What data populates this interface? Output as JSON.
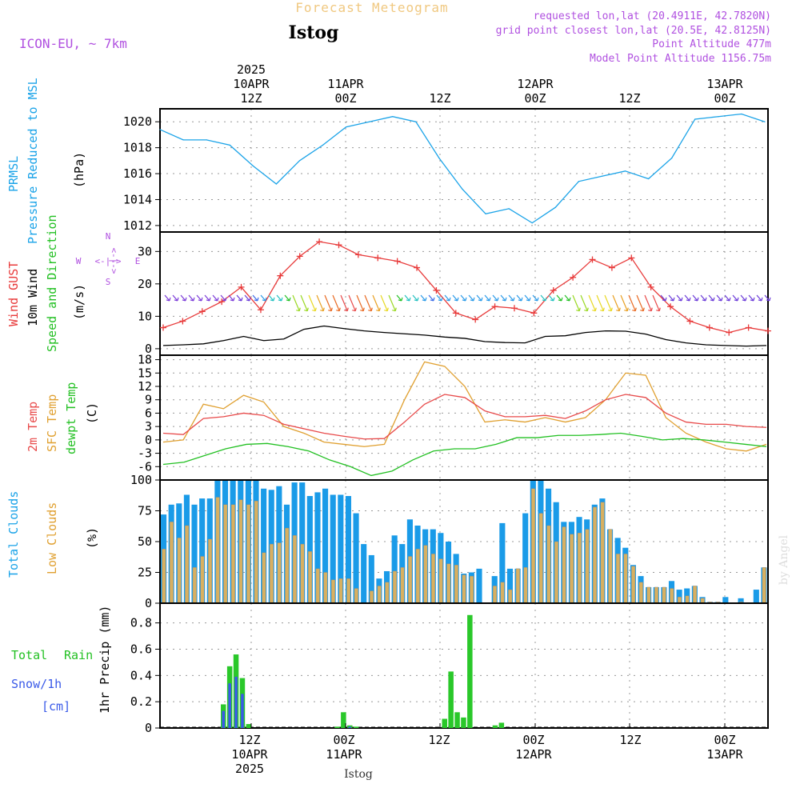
{
  "header": {
    "title": "Forecast Meteogram",
    "location": "Istog",
    "model": "ICON-EU, ~ 7km",
    "requested": "requested lon,lat (20.4911E, 42.7820N)",
    "gridpoint": "grid point closest lon,lat (20.5E, 42.8125N)",
    "point_alt": "Point Altitude 477m",
    "model_alt": "Model Point Altitude 1156.75m",
    "watermark": "by Angel",
    "footer": "Istog"
  },
  "time_axis": {
    "top": [
      {
        "year": "2025",
        "day": "10APR",
        "hour": "12Z"
      },
      {
        "day": "11APR",
        "hour": "00Z"
      },
      {
        "hour": "12Z"
      },
      {
        "day": "12APR",
        "hour": "00Z"
      },
      {
        "hour": "12Z"
      },
      {
        "day": "13APR",
        "hour": "00Z"
      }
    ],
    "bottom": [
      {
        "hour": "12Z",
        "day": "10APR",
        "year": "2025"
      },
      {
        "hour": "00Z",
        "day": "11APR"
      },
      {
        "hour": "12Z"
      },
      {
        "hour": "00Z",
        "day": "12APR"
      },
      {
        "hour": "12Z"
      },
      {
        "hour": "00Z",
        "day": "13APR"
      }
    ]
  },
  "labels": {
    "p1": {
      "a": "PRMSL",
      "b": "Pressure Reduced to MSL",
      "unit": "(hPa)"
    },
    "p2": {
      "a": "Wind GUST",
      "b": "10m Wind",
      "c": "Speed and Direction",
      "unit": "(m/s)",
      "compass": {
        "n": "N",
        "s": "S",
        "w": "W",
        "e": "E",
        "arrow_h": "<-|->",
        "arrow_v": "<-|->"
      }
    },
    "p3": {
      "a": "2m Temp",
      "b": "SFC Temp",
      "c": "dewpt Temp",
      "unit": "(C)"
    },
    "p4": {
      "a": "Total Clouds",
      "b": "Low Clouds",
      "unit": "(%)"
    },
    "p5": {
      "a": "Total",
      "b": "Rain",
      "c": "Snow/1h",
      "d": "[cm]",
      "unit": "1hr Precip (mm)"
    }
  },
  "colors": {
    "pressure": "#1aa3e8",
    "gust": "#e83a3a",
    "wind": "#000000",
    "t2m": "#e84a4a",
    "tsfc": "#e0a030",
    "dewpt": "#22c022",
    "total_clouds": "#1a9be8",
    "low_clouds": "#d8b060",
    "rain": "#2ac82a",
    "snow": "#3a5ae8",
    "title": "#f0c880",
    "info": "#b050e0"
  },
  "chart_data": [
    {
      "type": "line",
      "name": "PRMSL",
      "x_hours": [
        0,
        3,
        6,
        9,
        12,
        15,
        18,
        21,
        24,
        27,
        30,
        33,
        36,
        39,
        42,
        45,
        48,
        51,
        54,
        57,
        60,
        63,
        66,
        69,
        72,
        75,
        78
      ],
      "x_offset_note": "",
      "y": [
        1019.4,
        1018.6,
        1018.6,
        1018.2,
        1016.6,
        1015.2,
        1017.0,
        1018.2,
        1019.6,
        1020.0,
        1020.4,
        1020.0,
        1017.2,
        1014.8,
        1012.9,
        1013.3,
        1012.2,
        1013.4,
        1015.4,
        1015.8,
        1016.2,
        1015.6,
        1017.2,
        1020.2,
        1020.4,
        1020.6,
        1020.0
      ],
      "ylim": [
        1011.5,
        1021.0
      ],
      "yticks": [
        1012,
        1014,
        1016,
        1018,
        1020
      ]
    },
    {
      "type": "line",
      "name": "Wind GUST / 10m Wind",
      "gust": [
        6.5,
        8.5,
        11.5,
        14.5,
        19.0,
        12.0,
        22.5,
        28.5,
        33.0,
        32.0,
        29.0,
        28.0,
        27.0,
        25.0,
        18.0,
        11.0,
        9.0,
        13.0,
        12.5,
        11.0,
        18.0,
        22.0,
        27.5,
        25.0,
        28.0,
        19.0,
        13.0,
        8.5,
        6.5,
        5.0,
        6.5,
        5.5
      ],
      "wind": [
        1.0,
        1.2,
        1.5,
        2.5,
        3.8,
        2.5,
        3.0,
        6.0,
        7.0,
        6.2,
        5.5,
        5.0,
        4.6,
        4.2,
        3.6,
        3.2,
        2.2,
        1.9,
        1.8,
        3.8,
        4.0,
        5.0,
        5.5,
        5.4,
        4.5,
        2.8,
        1.8,
        1.2,
        1.0,
        0.8,
        1.0
      ],
      "ylim": [
        -2,
        36
      ],
      "yticks": [
        0,
        10,
        20,
        30
      ]
    },
    {
      "type": "line",
      "name": "Temperatures",
      "t2m": [
        1.5,
        1.2,
        4.8,
        5.2,
        6.0,
        5.5,
        3.5,
        2.5,
        1.5,
        0.8,
        0.2,
        0.3,
        4.0,
        8.0,
        10.2,
        9.5,
        6.5,
        5.2,
        5.2,
        5.5,
        4.8,
        6.5,
        9.0,
        10.2,
        9.5,
        6.0,
        4.0,
        3.5,
        3.5,
        3.0,
        2.8
      ],
      "tsfc": [
        -0.5,
        0.0,
        8.0,
        7.0,
        10.0,
        8.5,
        3.0,
        1.5,
        -0.5,
        -1.0,
        -1.5,
        -1.0,
        9.0,
        17.5,
        16.5,
        12.0,
        4.0,
        4.5,
        4.0,
        5.0,
        4.0,
        5.0,
        9.0,
        15.0,
        14.5,
        5.0,
        1.5,
        -0.5,
        -2.0,
        -2.5,
        -1.0
      ],
      "dewpt": [
        -5.5,
        -5.0,
        -3.5,
        -2.0,
        -1.0,
        -0.8,
        -1.5,
        -2.5,
        -4.5,
        -6.0,
        -8.0,
        -7.0,
        -4.5,
        -2.5,
        -2.0,
        -2.0,
        -1.0,
        0.5,
        0.5,
        1.0,
        1.0,
        1.2,
        1.5,
        0.8,
        0.0,
        0.3,
        0.0,
        -0.5,
        -1.0,
        -1.5
      ],
      "ylim": [
        -9,
        19
      ],
      "yticks": [
        -6,
        -3,
        0,
        3,
        6,
        9,
        12,
        15,
        18
      ]
    },
    {
      "type": "bar",
      "name": "Clouds",
      "total": [
        72,
        80,
        81,
        88,
        80,
        85,
        85,
        100,
        100,
        100,
        100,
        100,
        100,
        93,
        92,
        95,
        80,
        98,
        98,
        87,
        90,
        93,
        88,
        88,
        87,
        73,
        48,
        39,
        20,
        26,
        55,
        48,
        68,
        63,
        60,
        60,
        57,
        50,
        40,
        24,
        25,
        28,
        0,
        22,
        65,
        28,
        28,
        73,
        100,
        100,
        93,
        82,
        66,
        66,
        70,
        68,
        80,
        85,
        60,
        53,
        45,
        31,
        22,
        13,
        13,
        13,
        18,
        11,
        12,
        14,
        5,
        1,
        1,
        5,
        0,
        4,
        0,
        11,
        29
      ],
      "low": [
        44,
        66,
        53,
        63,
        29,
        38,
        52,
        86,
        80,
        80,
        84,
        80,
        83,
        41,
        48,
        49,
        61,
        55,
        48,
        42,
        28,
        25,
        19,
        20,
        20,
        12,
        0,
        10,
        14,
        17,
        26,
        29,
        38,
        44,
        47,
        40,
        36,
        32,
        31,
        23,
        22,
        0,
        0,
        14,
        17,
        11,
        28,
        29,
        93,
        73,
        63,
        50,
        62,
        56,
        57,
        60,
        78,
        82,
        60,
        40,
        40,
        30,
        17,
        13,
        13,
        13,
        12,
        5,
        6,
        14,
        4,
        1,
        1,
        0,
        0,
        1,
        0,
        0,
        29
      ],
      "ylim": [
        0,
        100
      ],
      "yticks": [
        0,
        25,
        50,
        75,
        100
      ]
    },
    {
      "type": "bar",
      "name": "Precipitation",
      "rain": [
        [
          16,
          0.18
        ],
        [
          17,
          0.47
        ],
        [
          18,
          0.56
        ],
        [
          19,
          0.38
        ],
        [
          20,
          0.03
        ],
        [
          34,
          0.01
        ],
        [
          35,
          0.12
        ],
        [
          36,
          0.02
        ],
        [
          37,
          0.01
        ],
        [
          51,
          0.07
        ],
        [
          52,
          0.43
        ],
        [
          53,
          0.12
        ],
        [
          54,
          0.08
        ],
        [
          55,
          0.86
        ],
        [
          59,
          0.02
        ],
        [
          60,
          0.04
        ]
      ],
      "snow": [
        [
          16,
          0.13
        ],
        [
          17,
          0.34
        ],
        [
          18,
          0.39
        ],
        [
          19,
          0.26
        ],
        [
          36,
          0.01
        ]
      ],
      "ylim": [
        0,
        0.95
      ],
      "yticks": [
        0,
        0.2,
        0.4,
        0.6,
        0.8
      ]
    }
  ]
}
